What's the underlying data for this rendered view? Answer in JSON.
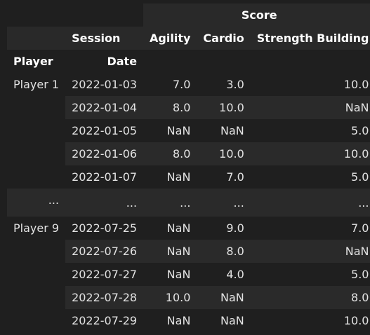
{
  "header": {
    "group_label": "Score",
    "session_label": "Session",
    "columns": [
      "Agility",
      "Cardio",
      "Strength Building"
    ],
    "index_names": [
      "Player",
      "Date"
    ]
  },
  "groups": [
    {
      "player": "Player 1",
      "rows": [
        {
          "date": "2022-01-03",
          "agility": "7.0",
          "cardio": "3.0",
          "strength": "10.0"
        },
        {
          "date": "2022-01-04",
          "agility": "8.0",
          "cardio": "10.0",
          "strength": "NaN"
        },
        {
          "date": "2022-01-05",
          "agility": "NaN",
          "cardio": "NaN",
          "strength": "5.0"
        },
        {
          "date": "2022-01-06",
          "agility": "8.0",
          "cardio": "10.0",
          "strength": "10.0"
        },
        {
          "date": "2022-01-07",
          "agility": "NaN",
          "cardio": "7.0",
          "strength": "5.0"
        }
      ]
    },
    {
      "player": "Player 9",
      "rows": [
        {
          "date": "2022-07-25",
          "agility": "NaN",
          "cardio": "9.0",
          "strength": "7.0"
        },
        {
          "date": "2022-07-26",
          "agility": "NaN",
          "cardio": "8.0",
          "strength": "NaN"
        },
        {
          "date": "2022-07-27",
          "agility": "NaN",
          "cardio": "4.0",
          "strength": "5.0"
        },
        {
          "date": "2022-07-28",
          "agility": "10.0",
          "cardio": "NaN",
          "strength": "8.0"
        },
        {
          "date": "2022-07-29",
          "agility": "NaN",
          "cardio": "NaN",
          "strength": "10.0"
        }
      ]
    }
  ],
  "ellipsis": "..."
}
